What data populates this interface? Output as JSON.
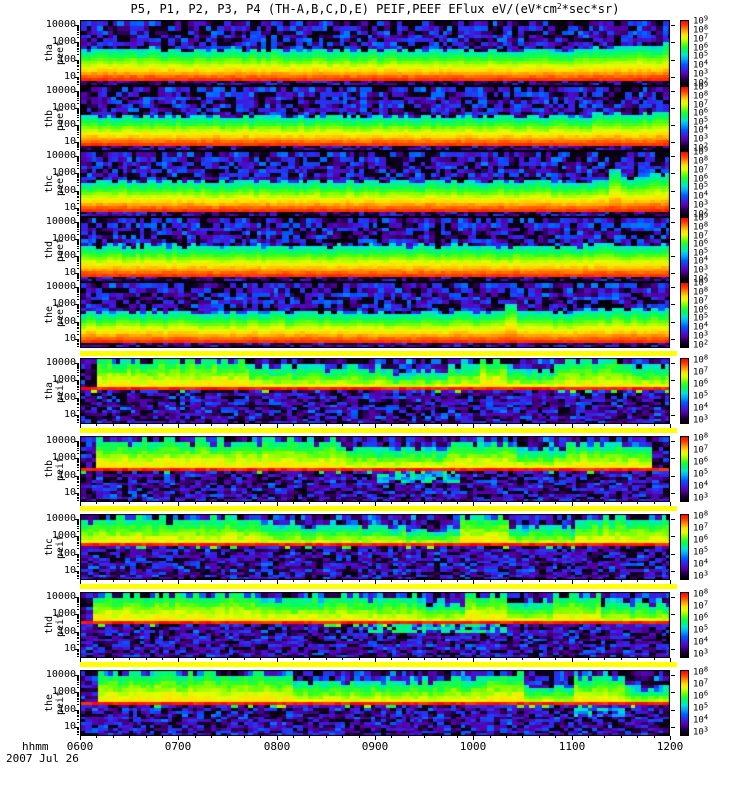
{
  "title": {
    "pre": "P5, P1, P2, P3, P4 (TH-A,B,C,D,E) PEIF,PEEF EFlux eV/(eV*cm",
    "sup": "2",
    "post": "*sec*sr)"
  },
  "x_axis": {
    "label": "hhmm",
    "date": "2007 Jul 26",
    "ticks": [
      "0600",
      "0700",
      "0800",
      "0900",
      "1000",
      "1100",
      "1200"
    ]
  },
  "colors": {
    "figure_background": "#ffffff",
    "panel_background": "#000000",
    "separator_yellow": "#ffff00",
    "spectral_line_red": "#ff2000",
    "colormap": "rainbow"
  },
  "chart_data": {
    "type": "heatmap",
    "subtype": "energy-time spectrogram stack",
    "title": "P5, P1, P2, P3, P4 (TH-A,B,C,D,E) PEIF,PEEF EFlux eV/(eV*cm^2*sec*sr)",
    "x": {
      "label": "hhmm",
      "date": "2007 Jul 26",
      "range_hours": [
        6,
        12
      ],
      "ticks": [
        "0600",
        "0700",
        "0800",
        "0900",
        "1000",
        "1100",
        "1200"
      ]
    },
    "y": {
      "scale": "log",
      "units": "eV",
      "ticks": [
        "10",
        "100",
        "1000",
        "10000"
      ]
    },
    "z_units": "eV/(eV*cm^2*sec*sr)",
    "legend_position": "right colorbars",
    "grid": false,
    "panels": [
      {
        "id": "tha-peef",
        "label_line1": "tha",
        "label_line2": "peef",
        "species": "electron",
        "y_ticks": [
          "10000",
          "1000",
          "100",
          "10"
        ],
        "colorbar_exponents": [
          "9",
          "8",
          "7",
          "6",
          "5",
          "4",
          "3",
          "2"
        ],
        "seed": 11,
        "features": "dark blue/purple mottle above ~300 eV; smooth intense band green->yellow->orange->red from ~300 eV down to ~10 eV; band broadens upward after ~1100",
        "render": {
          "kind": "electron",
          "trans": 0.45,
          "riseStart": 0.86,
          "riseTop": 0.36,
          "spikes": []
        }
      },
      {
        "id": "thb-peef",
        "label_line1": "thb",
        "label_line2": "peef",
        "species": "electron",
        "y_ticks": [
          "10000",
          "1000",
          "100",
          "10"
        ],
        "colorbar_exponents": [
          "9",
          "8",
          "7",
          "6",
          "5",
          "4",
          "3",
          "2"
        ],
        "seed": 22,
        "features": "same warm low-energy band; upper edge more disturbed after ~1030",
        "render": {
          "kind": "electron",
          "trans": 0.47,
          "riseStart": 0.8,
          "riseTop": 0.4,
          "spikes": []
        }
      },
      {
        "id": "thc-peef",
        "label_line1": "thc",
        "label_line2": "peef",
        "species": "electron",
        "y_ticks": [
          "10000",
          "1000",
          "100",
          "10"
        ],
        "colorbar_exponents": [
          "9",
          "8",
          "7",
          "6",
          "5",
          "4",
          "3",
          "2"
        ],
        "seed": 33,
        "features": "warm band with upward green spikes near ~1130",
        "render": {
          "kind": "electron",
          "trans": 0.46,
          "riseStart": 0.87,
          "riseTop": 0.34,
          "spikes": [
            0.905
          ]
        }
      },
      {
        "id": "thd-peef",
        "label_line1": "thd",
        "label_line2": "peef",
        "species": "electron",
        "y_ticks": [
          "10000",
          "1000",
          "100",
          "10"
        ],
        "colorbar_exponents": [
          "9",
          "8",
          "7",
          "6",
          "5",
          "4",
          "3",
          "2"
        ],
        "seed": 44,
        "features": "warm band thickens toward right; orange reaches higher energies after ~1045",
        "render": {
          "kind": "electron",
          "trans": 0.45,
          "riseStart": 0.78,
          "riseTop": 0.41,
          "spikes": []
        }
      },
      {
        "id": "the-peef",
        "label_line1": "the",
        "label_line2": "peef",
        "species": "electron",
        "y_ticks": [
          "10000",
          "1000",
          "100",
          "10"
        ],
        "colorbar_exponents": [
          "9",
          "8",
          "7",
          "6",
          "5",
          "4",
          "3",
          "2"
        ],
        "seed": 55,
        "features": "warm band with cyan spike near ~1015 and broader green top after ~1100",
        "render": {
          "kind": "electron",
          "trans": 0.46,
          "riseStart": 0.82,
          "riseTop": 0.38,
          "spikes": [
            0.73
          ]
        }
      },
      {
        "id": "tha-peif",
        "label_line1": "tha",
        "label_line2": "peif",
        "species": "ion",
        "y_ticks": [
          "10000",
          "1000",
          "100",
          "10"
        ],
        "colorbar_exponents": [
          "8",
          "7",
          "6",
          "5",
          "4",
          "3"
        ],
        "seed": 66,
        "features": "green 1-10 keV flux strongest 0600-0740, blob ~1015, enhanced 1100-1200; narrow red line near 500 eV; dim blue mottle below",
        "render": {
          "kind": "ion",
          "line": 0.46,
          "patch": null,
          "bands": [
            [
              0.02,
              0.28,
              0.95
            ],
            [
              0.28,
              0.52,
              0.55
            ],
            [
              0.52,
              0.62,
              0.35
            ],
            [
              0.62,
              0.67,
              0.6
            ],
            [
              0.67,
              0.72,
              1.0
            ],
            [
              0.72,
              0.8,
              0.45
            ],
            [
              0.8,
              0.93,
              0.8
            ],
            [
              0.93,
              1.0,
              0.5
            ]
          ]
        }
      },
      {
        "id": "thb-peif",
        "label_line1": "thb",
        "label_line2": "peif",
        "species": "ion",
        "y_ticks": [
          "10000",
          "1000",
          "100",
          "10"
        ],
        "colorbar_exponents": [
          "8",
          "7",
          "6",
          "5",
          "4",
          "3"
        ],
        "seed": 77,
        "features": "green keV band 0600-0930 and ~1015; cyan patch below red line ~0920-0950; red line near 600 eV",
        "render": {
          "kind": "ion",
          "line": 0.5,
          "patch": [
            0.5,
            0.64,
            0.55,
            0.7
          ],
          "bands": [
            [
              0.02,
              0.45,
              0.9
            ],
            [
              0.45,
              0.62,
              0.55
            ],
            [
              0.62,
              0.74,
              0.85
            ],
            [
              0.74,
              0.82,
              0.5
            ],
            [
              0.82,
              0.97,
              0.75
            ]
          ]
        }
      },
      {
        "id": "thc-peif",
        "label_line1": "thc",
        "label_line2": "peif",
        "species": "ion",
        "y_ticks": [
          "10000",
          "1000",
          "100",
          "10"
        ],
        "colorbar_exponents": [
          "8",
          "7",
          "6",
          "5",
          "4",
          "3"
        ],
        "seed": 88,
        "features": "green keV flux 0600-0750, bright blob ~1015, enhanced 1110-1200; red line near 550 eV",
        "render": {
          "kind": "ion",
          "line": 0.48,
          "patch": null,
          "bands": [
            [
              0.0,
              0.3,
              0.85
            ],
            [
              0.3,
              0.55,
              0.5
            ],
            [
              0.55,
              0.64,
              0.3
            ],
            [
              0.64,
              0.72,
              1.0
            ],
            [
              0.72,
              0.84,
              0.45
            ],
            [
              0.84,
              1.0,
              0.85
            ]
          ]
        }
      },
      {
        "id": "thd-peif",
        "label_line1": "thd",
        "label_line2": "peif",
        "species": "ion",
        "y_ticks": [
          "10000",
          "1000",
          "100",
          "10"
        ],
        "colorbar_exponents": [
          "8",
          "7",
          "6",
          "5",
          "4",
          "3"
        ],
        "seed": 99,
        "features": "broad green keV band 0600-0950; tall bright blob ~1015; green below line 0900-1000; bright 1100-1130; red line near 550 eV",
        "render": {
          "kind": "ion",
          "line": 0.47,
          "patch": [
            0.48,
            0.72,
            0.5,
            0.63
          ],
          "bands": [
            [
              0.02,
              0.3,
              0.95
            ],
            [
              0.3,
              0.57,
              0.75
            ],
            [
              0.57,
              0.65,
              0.5
            ],
            [
              0.65,
              0.72,
              1.0
            ],
            [
              0.72,
              0.8,
              0.55
            ],
            [
              0.8,
              0.88,
              0.9
            ],
            [
              0.88,
              1.0,
              0.5
            ]
          ]
        }
      },
      {
        "id": "the-peif",
        "label_line1": "the",
        "label_line2": "peif",
        "species": "ion",
        "y_ticks": [
          "10000",
          "1000",
          "100",
          "10"
        ],
        "colorbar_exponents": [
          "8",
          "7",
          "6",
          "5",
          "4",
          "3"
        ],
        "seed": 110,
        "features": "continuous yellow-green keV band 0600-1020, brightest at left and ~1015; enhanced 1100-1140; red line near 600 eV",
        "render": {
          "kind": "ion",
          "line": 0.52,
          "patch": [
            0.83,
            0.92,
            0.56,
            0.7
          ],
          "bands": [
            [
              0.02,
              0.35,
              1.0
            ],
            [
              0.35,
              0.62,
              0.65
            ],
            [
              0.62,
              0.68,
              0.8
            ],
            [
              0.68,
              0.75,
              1.0
            ],
            [
              0.75,
              0.83,
              0.45
            ],
            [
              0.83,
              0.92,
              0.9
            ],
            [
              0.92,
              1.0,
              0.35
            ]
          ]
        }
      }
    ]
  }
}
